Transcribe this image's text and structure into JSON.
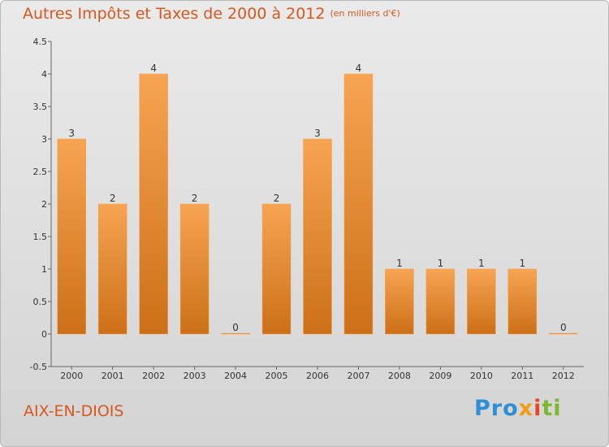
{
  "header": {
    "title": "Autres Impôts et Taxes de 2000 à 2012",
    "unit": "(en milliers d'€)"
  },
  "footer": {
    "commune": "AIX-EN-DIOIS",
    "logo": "Proxiti"
  },
  "colors": {
    "accent": "#d9571c",
    "bar_light": "#f7a452",
    "bar_dark": "#cc7018"
  },
  "chart_data": {
    "type": "bar",
    "categories": [
      "2000",
      "2001",
      "2002",
      "2003",
      "2004",
      "2005",
      "2006",
      "2007",
      "2008",
      "2009",
      "2010",
      "2011",
      "2012"
    ],
    "values": [
      3,
      2,
      4,
      2,
      0,
      2,
      3,
      4,
      1,
      1,
      1,
      1,
      0
    ],
    "data_labels": [
      "3",
      "2",
      "4",
      "2",
      "0",
      "2",
      "3",
      "4",
      "1",
      "1",
      "1",
      "1",
      "0"
    ],
    "y_ticks": [
      -0.5,
      0,
      0.5,
      1,
      1.5,
      2,
      2.5,
      3,
      3.5,
      4,
      4.5
    ],
    "y_tick_labels": [
      "-0.5",
      "0",
      "0.5",
      "1",
      "1.5",
      "2",
      "2.5",
      "3",
      "3.5",
      "4",
      "4.5"
    ],
    "ylim": [
      -0.5,
      4.5
    ],
    "grid": false,
    "xlabel": "",
    "ylabel": ""
  }
}
